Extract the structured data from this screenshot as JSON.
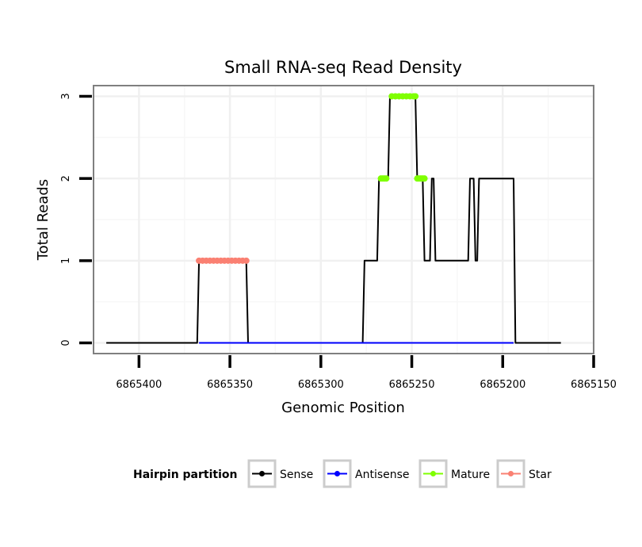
{
  "chart_data": {
    "type": "line",
    "title": "Small RNA-seq Read Density",
    "xlabel": "Genomic Position",
    "ylabel": "Total Reads",
    "x_reversed": true,
    "xlim": [
      6865425,
      6865150
    ],
    "ylim": [
      -0.13,
      3.13
    ],
    "x_ticks": [
      6865400,
      6865350,
      6865300,
      6865250,
      6865200,
      6865150
    ],
    "x_tick_labels": [
      "6865400",
      "6865350",
      "6865300",
      "6865250",
      "6865200",
      "6865150"
    ],
    "y_ticks": [
      0,
      1,
      2,
      3
    ],
    "y_tick_labels": [
      "0",
      "1",
      "2",
      "3"
    ],
    "grid": true,
    "legend": {
      "title": "Hairpin partition",
      "position": "bottom",
      "entries": [
        {
          "name": "Sense",
          "color": "#000000"
        },
        {
          "name": "Antisense",
          "color": "#0000ff"
        },
        {
          "name": "Mature",
          "color": "#7fff00"
        },
        {
          "name": "Star",
          "color": "#fa8072"
        }
      ]
    },
    "series": [
      {
        "name": "Sense",
        "color": "#000000",
        "style": "line",
        "x": [
          6865418,
          6865368,
          6865367,
          6865341,
          6865340,
          6865277,
          6865276,
          6865269,
          6865268,
          6865263,
          6865262,
          6865248,
          6865247,
          6865244,
          6865243,
          6865240,
          6865239,
          6865238,
          6865237,
          6865236,
          6865235,
          6865219,
          6865218,
          6865216,
          6865215,
          6865214,
          6865213,
          6865194,
          6865193,
          6865168
        ],
        "y": [
          0,
          0,
          1,
          1,
          0,
          0,
          1,
          1,
          2,
          2,
          3,
          3,
          2,
          2,
          1,
          1,
          2,
          2,
          1,
          1,
          1,
          1,
          2,
          2,
          1,
          1,
          2,
          2,
          0,
          0
        ]
      },
      {
        "name": "Antisense",
        "color": "#0000ff",
        "style": "line",
        "x": [
          6865367,
          6865341,
          6865276,
          6865194
        ],
        "y": [
          0,
          0,
          0,
          0
        ]
      },
      {
        "name": "Mature",
        "color": "#7fff00",
        "style": "points",
        "x": [
          6865267,
          6865266,
          6865265,
          6865264,
          6865261,
          6865259,
          6865257,
          6865255,
          6865253,
          6865251,
          6865249,
          6865248,
          6865247,
          6865246,
          6865245,
          6865244,
          6865243
        ],
        "y": [
          2,
          2,
          2,
          2,
          3,
          3,
          3,
          3,
          3,
          3,
          3,
          3,
          2,
          2,
          2,
          2,
          2
        ]
      },
      {
        "name": "Star",
        "color": "#fa8072",
        "style": "points",
        "x": [
          6865367,
          6865365,
          6865363,
          6865361,
          6865359,
          6865357,
          6865355,
          6865353,
          6865351,
          6865349,
          6865347,
          6865345,
          6865343,
          6865341
        ],
        "y": [
          1,
          1,
          1,
          1,
          1,
          1,
          1,
          1,
          1,
          1,
          1,
          1,
          1,
          1
        ]
      }
    ]
  }
}
